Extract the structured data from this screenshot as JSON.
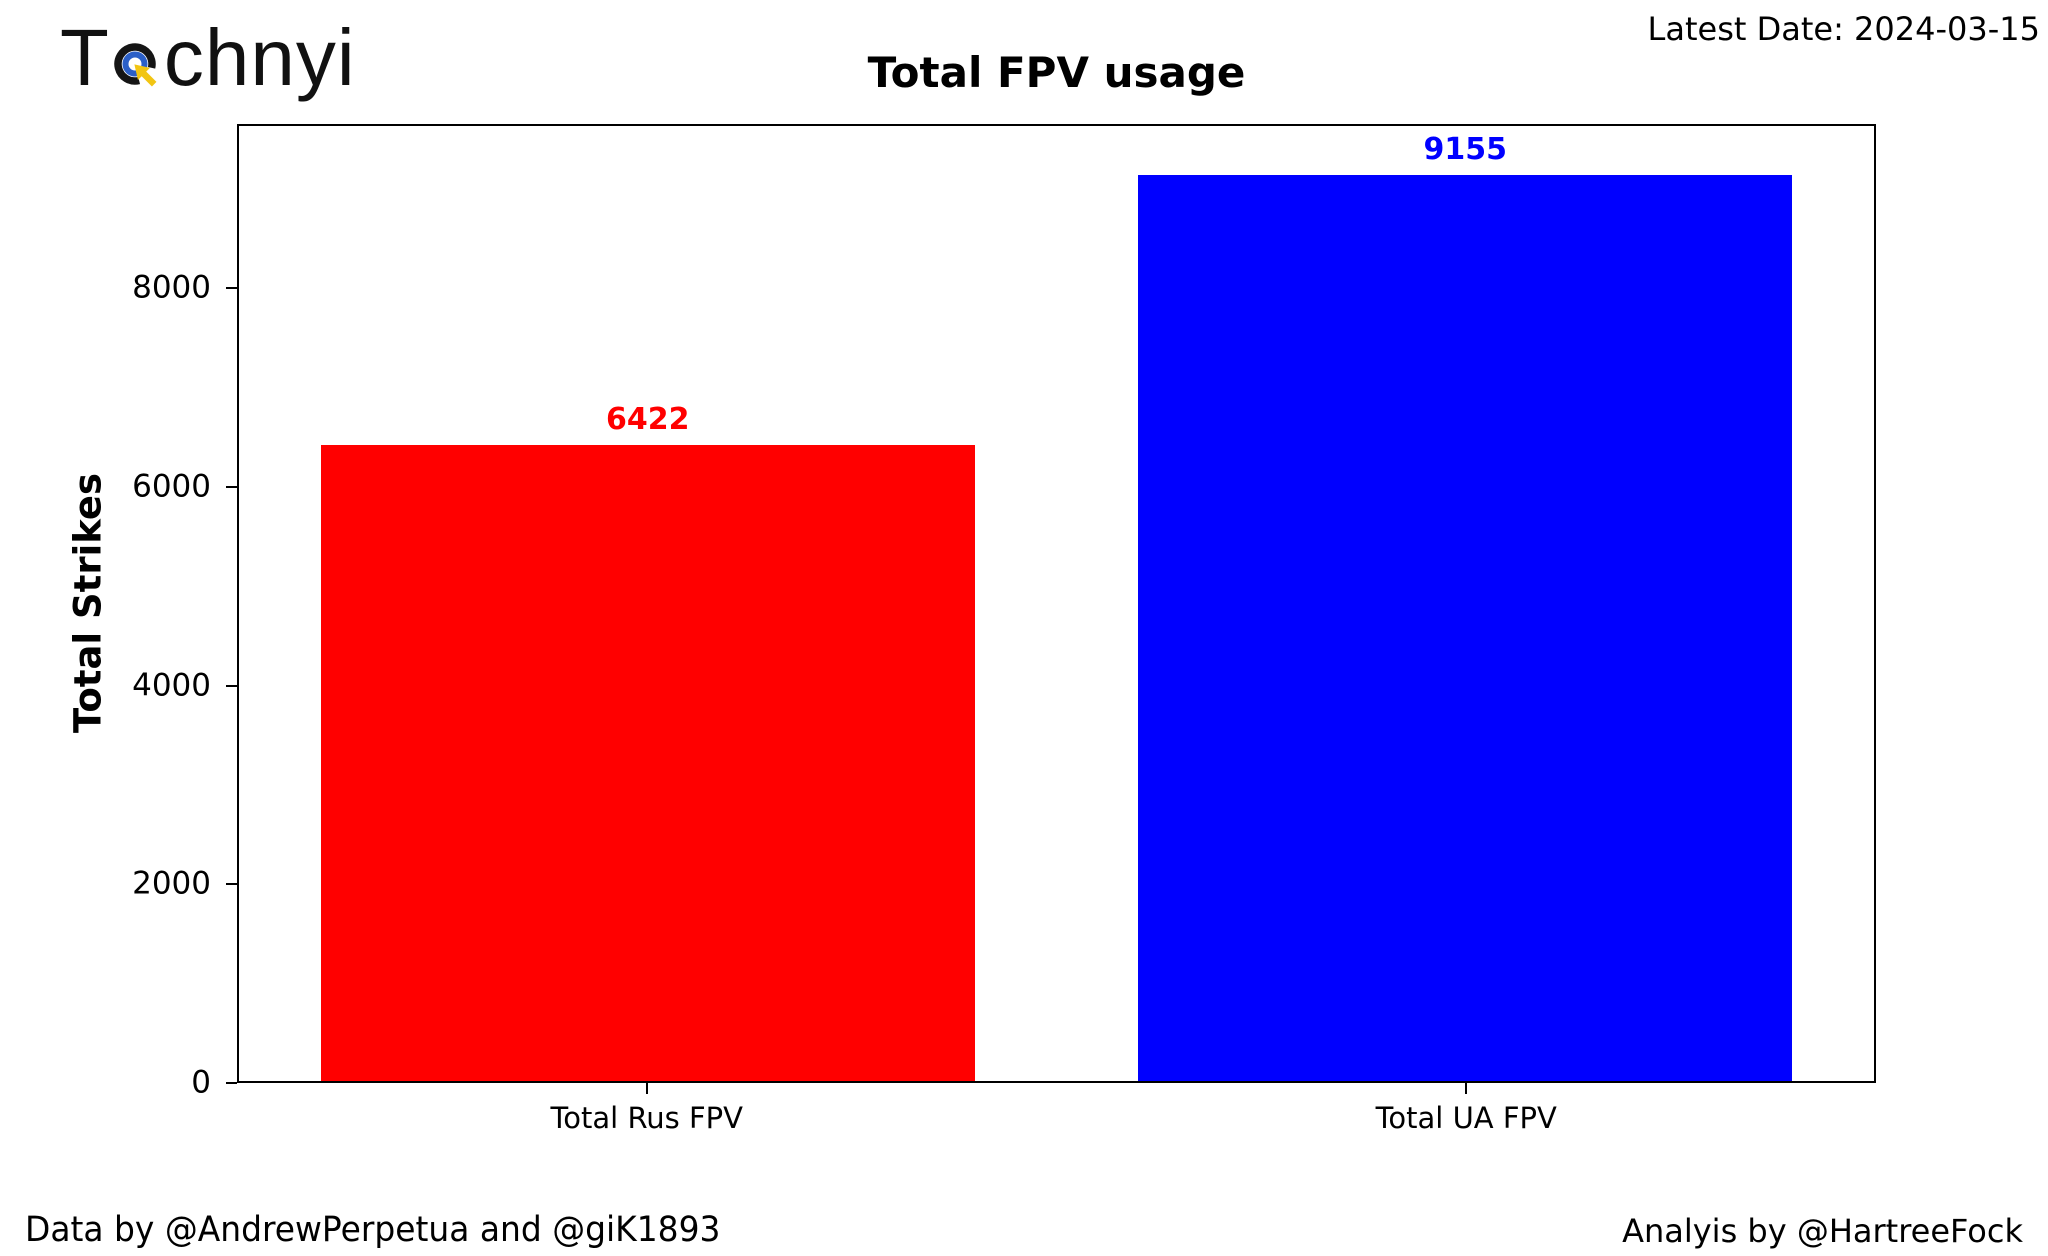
{
  "logo": {
    "text_pre": "T",
    "text_post": "chnyi",
    "icon": "target-cursor-icon",
    "outer_ring_color": "#151515",
    "inner_ring_color": "#2b5fc7",
    "cursor_color": "#f2c512"
  },
  "header": {
    "latest_date": "Latest Date: 2024-03-15"
  },
  "chart_data": {
    "type": "bar",
    "title": "Total FPV usage",
    "xlabel": "",
    "ylabel": "Total Strikes",
    "categories": [
      "Total Rus FPV",
      "Total UA FPV"
    ],
    "values": [
      6422,
      9155
    ],
    "bar_labels": [
      "6422",
      "9155"
    ],
    "bar_colors": [
      "#ff0000",
      "#0000ff"
    ],
    "label_colors": [
      "#ff0000",
      "#0000ff"
    ],
    "yticks": [
      0,
      2000,
      4000,
      6000,
      8000
    ],
    "ylim": [
      0,
      9650
    ],
    "grid": false,
    "legend": "none",
    "bar_width_fraction": 0.4,
    "bar_centers_fraction": [
      0.25,
      0.75
    ]
  },
  "footer": {
    "left": "Data by @AndrewPerpetua and @giK1893",
    "right": "Analyis by @HartreeFock"
  }
}
